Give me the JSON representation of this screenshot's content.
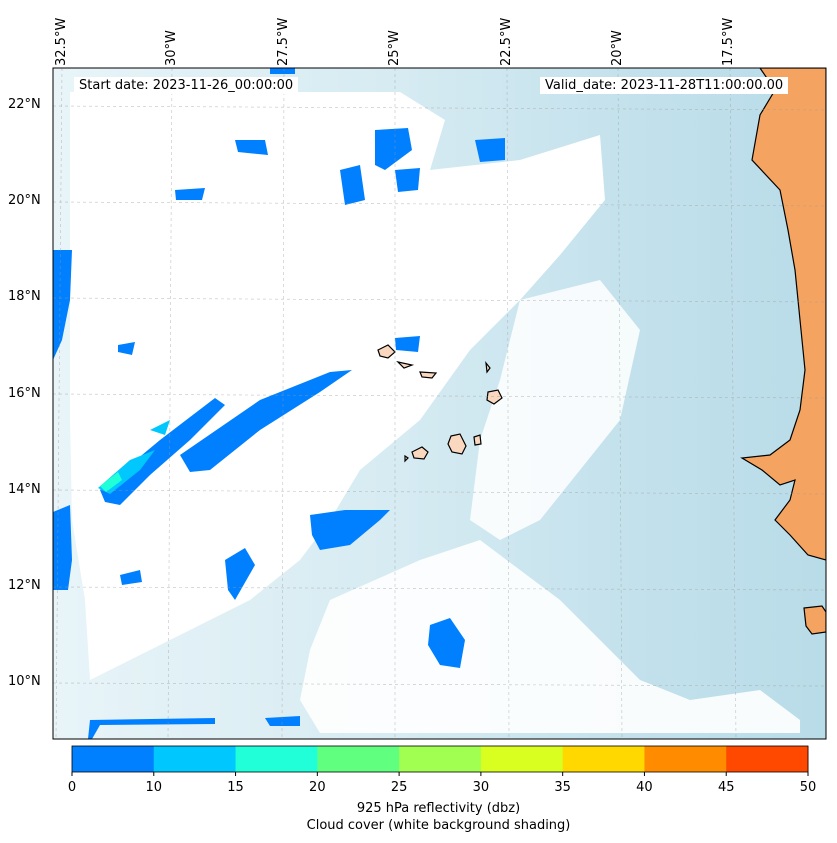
{
  "map": {
    "start_date": "Start date: 2023-11-26_00:00:00",
    "valid_date": "Valid_date: 2023-11-28T11:00:00.00",
    "longitude_labels": [
      "32.5°W",
      "30°W",
      "27.5°W",
      "25°W",
      "22.5°W",
      "20°W",
      "17.5°W"
    ],
    "latitude_labels": [
      "22°N",
      "20°N",
      "18°N",
      "16°N",
      "14°N",
      "12°N",
      "10°N"
    ],
    "colors": {
      "land": "#f4a460",
      "island": "#f9d8bf",
      "cloud_shading": "#cfe8f0",
      "coastline": "#000000"
    }
  },
  "colorbar": {
    "ticks": [
      "0",
      "10",
      "15",
      "20",
      "25",
      "30",
      "35",
      "40",
      "45",
      "50"
    ],
    "colors": [
      "#0080ff",
      "#00c8ff",
      "#20ffd8",
      "#60ff80",
      "#a0ff50",
      "#d8ff20",
      "#ffd800",
      "#ff8c00",
      "#ff4800"
    ],
    "label_line1": "925 hPa reflectivity (dbz)",
    "label_line2": "Cloud cover (white background shading)"
  }
}
